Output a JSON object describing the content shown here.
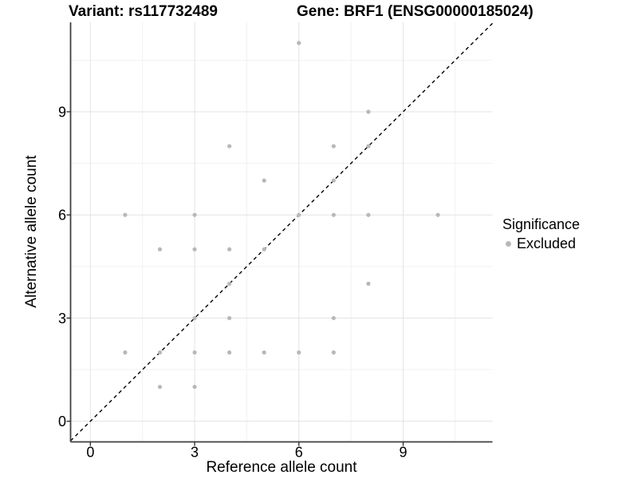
{
  "title": {
    "left": "Variant: rs117732489",
    "right": "Gene: BRF1 (ENSG00000185024)"
  },
  "axes": {
    "x_label": "Reference allele count",
    "y_label": "Alternative allele count",
    "x_tick_labels": [
      "0",
      "3",
      "6",
      "9"
    ],
    "y_tick_labels": [
      "0",
      "3",
      "6",
      "9"
    ]
  },
  "legend": {
    "title": "Significance",
    "items": [
      {
        "label": "Excluded",
        "color": "#b8b8b8"
      }
    ]
  },
  "colors": {
    "background": "#ffffff",
    "grid_major": "#e3e3e3",
    "grid_minor": "#f1f1f1",
    "axis_line": "#3f3f3f",
    "tick_mark": "#333333",
    "point": "#b8b8b8",
    "identity_line": "#000000",
    "text": "#000000"
  },
  "chart_data": {
    "type": "scatter",
    "title": "Variant: rs117732489   Gene: BRF1 (ENSG00000185024)",
    "xlabel": "Reference allele count",
    "ylabel": "Alternative allele count",
    "xlim": [
      -0.57,
      11.57
    ],
    "ylim": [
      -0.6,
      11.6
    ],
    "xticks": [
      0,
      3,
      6,
      9
    ],
    "yticks": [
      0,
      3,
      6,
      9
    ],
    "minor_gridlines": [
      1.5,
      4.5,
      7.5,
      10.5
    ],
    "grid": "major+minor",
    "legend_position": "right",
    "identity_line": {
      "equation": "y = x",
      "style": "dashed",
      "color": "#000000"
    },
    "series": [
      {
        "name": "Excluded",
        "color": "#b8b8b8",
        "points": [
          [
            1,
            2
          ],
          [
            1,
            6
          ],
          [
            2,
            1
          ],
          [
            2,
            2
          ],
          [
            2,
            5
          ],
          [
            3,
            1
          ],
          [
            3,
            2
          ],
          [
            3,
            3
          ],
          [
            3,
            5
          ],
          [
            3,
            6
          ],
          [
            4,
            2
          ],
          [
            4,
            3
          ],
          [
            4,
            4
          ],
          [
            4,
            5
          ],
          [
            4,
            8
          ],
          [
            5,
            2
          ],
          [
            5,
            5
          ],
          [
            5,
            7
          ],
          [
            6,
            2
          ],
          [
            6,
            6
          ],
          [
            6,
            11
          ],
          [
            7,
            2
          ],
          [
            7,
            3
          ],
          [
            7,
            6
          ],
          [
            7,
            7
          ],
          [
            7,
            8
          ],
          [
            8,
            4
          ],
          [
            8,
            6
          ],
          [
            8,
            8
          ],
          [
            8,
            9
          ],
          [
            10,
            6
          ]
        ]
      }
    ]
  }
}
